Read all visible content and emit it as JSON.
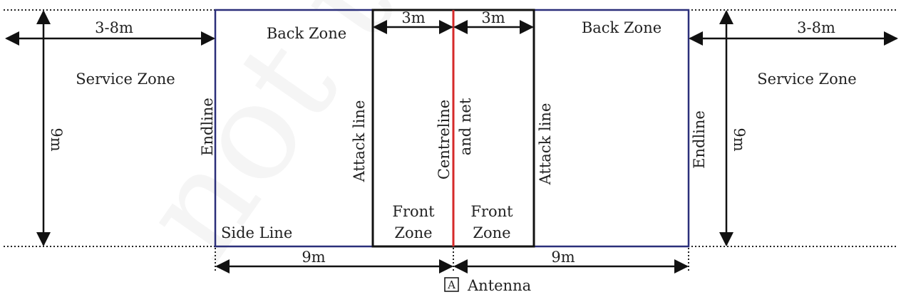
{
  "labels": {
    "back_zone_left": "Back Zone",
    "back_zone_right": "Back Zone",
    "service_zone_left": "Service Zone",
    "service_zone_right": "Service Zone",
    "endline_left": "Endline",
    "endline_right": "Endline",
    "attack_line_left": "Attack line",
    "attack_line_right": "Attack line",
    "centreline_1": "Centreline",
    "centreline_2": "and net",
    "front_zone_left_1": "Front",
    "front_zone_left_2": "Zone",
    "front_zone_right_1": "Front",
    "front_zone_right_2": "Zone",
    "side_line": "Side Line",
    "antenna_symbol": "A",
    "antenna": "Antenna",
    "watermark": "not to"
  },
  "dimensions": {
    "service_left": "3-8m",
    "service_right": "3-8m",
    "front_left": "3m",
    "front_right": "3m",
    "width_left": "9m",
    "width_right": "9m",
    "half_left": "9m",
    "half_right": "9m"
  },
  "colors": {
    "court_line": "#2b2f7a",
    "net_line": "#d62a2a",
    "black": "#111111"
  }
}
